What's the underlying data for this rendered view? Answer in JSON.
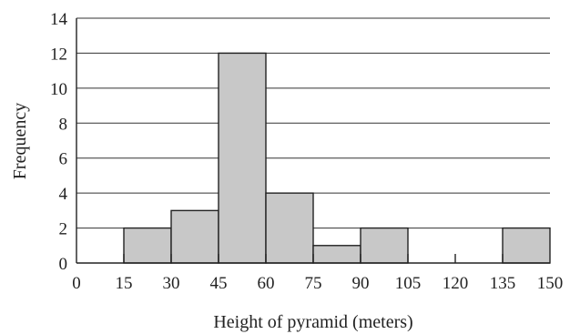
{
  "chart_data": {
    "type": "bar",
    "title": "",
    "xlabel": "Height of pyramid (meters)",
    "ylabel": "Frequency",
    "bins": [
      {
        "from": 15,
        "to": 30,
        "value": 2
      },
      {
        "from": 30,
        "to": 45,
        "value": 3
      },
      {
        "from": 45,
        "to": 60,
        "value": 12
      },
      {
        "from": 60,
        "to": 75,
        "value": 4
      },
      {
        "from": 75,
        "to": 90,
        "value": 1
      },
      {
        "from": 90,
        "to": 105,
        "value": 2
      },
      {
        "from": 105,
        "to": 120,
        "value": 0
      },
      {
        "from": 120,
        "to": 135,
        "value": 0
      },
      {
        "from": 135,
        "to": 150,
        "value": 2
      }
    ],
    "xticks": [
      "0",
      "15",
      "30",
      "45",
      "60",
      "75",
      "90",
      "105",
      "120",
      "135",
      "150"
    ],
    "yticks": [
      "0",
      "2",
      "4",
      "6",
      "8",
      "10",
      "12",
      "14"
    ],
    "xlim": [
      0,
      150
    ],
    "ylim": [
      0,
      14
    ],
    "grid": "horizontal",
    "bar_color": "#c8c8c8",
    "line_color": "#222222"
  }
}
